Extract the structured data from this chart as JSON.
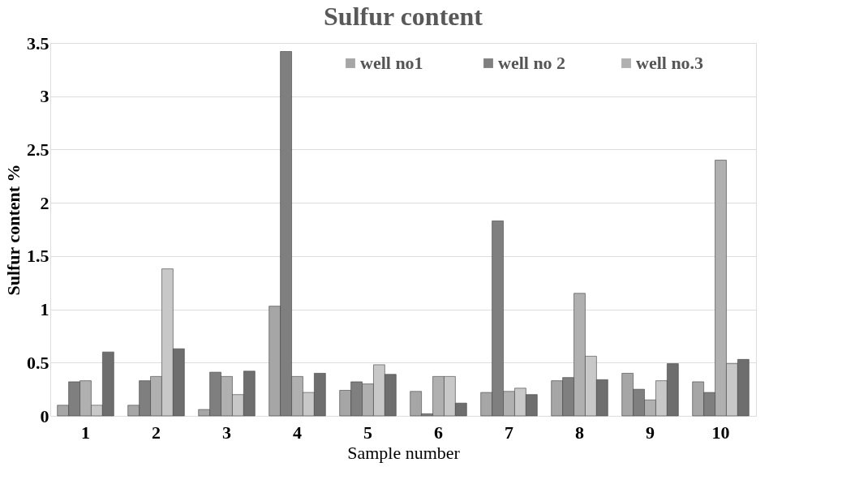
{
  "chart_data": {
    "type": "bar",
    "title": "Sulfur content",
    "xlabel": "Sample number",
    "ylabel": "Sulfur content %",
    "categories": [
      "1",
      "2",
      "3",
      "4",
      "5",
      "6",
      "7",
      "8",
      "9",
      "10"
    ],
    "series": [
      {
        "name": "well no1",
        "color": "#a6a6a6",
        "values": [
          0.1,
          0.1,
          0.06,
          1.03,
          0.24,
          0.23,
          0.22,
          0.33,
          0.4,
          0.32
        ]
      },
      {
        "name": "well no 2",
        "color": "#7f7f7f",
        "values": [
          0.32,
          0.33,
          0.41,
          3.42,
          0.32,
          0.02,
          1.83,
          0.36,
          0.25,
          0.22
        ]
      },
      {
        "name": "well no.3",
        "color": "#b0b0b0",
        "values": [
          0.33,
          0.37,
          0.37,
          0.37,
          0.3,
          0.37,
          0.23,
          1.15,
          0.15,
          2.4
        ]
      },
      {
        "color": "#c8c8c8",
        "values": [
          0.1,
          1.38,
          0.2,
          0.22,
          0.48,
          0.37,
          0.26,
          0.56,
          0.33,
          0.49
        ]
      },
      {
        "color": "#6e6e6e",
        "values": [
          0.6,
          0.63,
          0.42,
          0.4,
          0.39,
          0.12,
          0.2,
          0.34,
          0.49,
          0.53
        ]
      }
    ],
    "ylim": [
      0,
      3.5
    ],
    "yticks": [
      0,
      0.5,
      1,
      1.5,
      2,
      2.5,
      3,
      3.5
    ],
    "grid": "y",
    "legend": "top right"
  }
}
